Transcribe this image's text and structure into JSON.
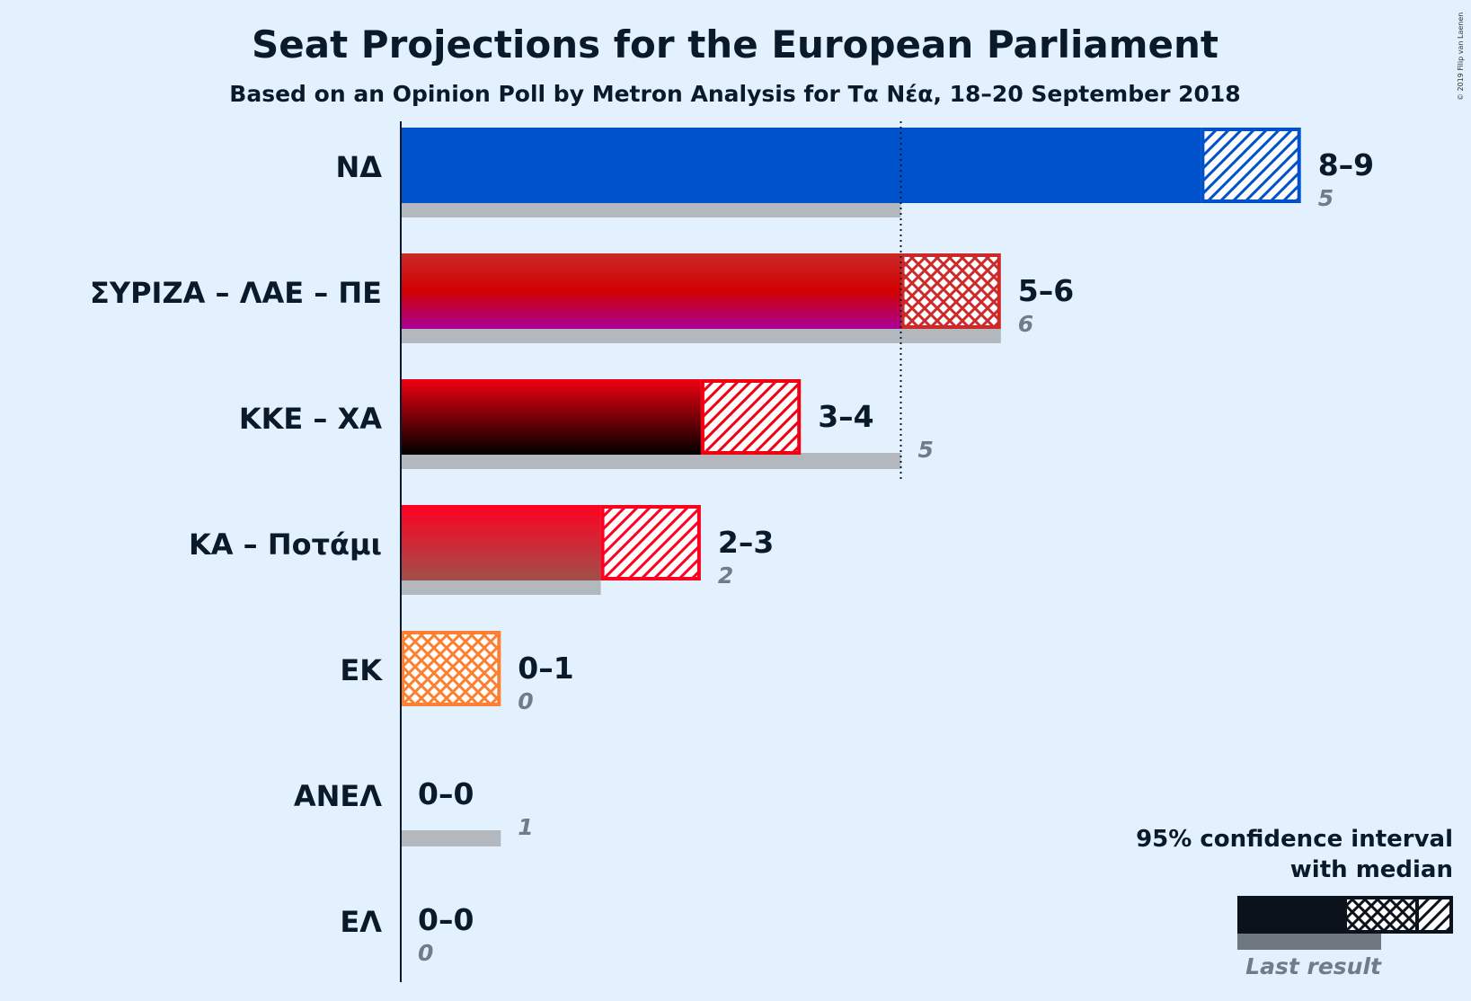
{
  "chart_data": {
    "type": "bar",
    "title": "Seat Projections for the European Parliament",
    "subtitle": "Based on an Opinion Poll by Metron Analysis for Τα Νέα, 18–20 September 2018",
    "copyright": "© 2019 Filip van Laenen",
    "xlim": [
      0,
      9
    ],
    "majority_marker": 5,
    "categories": [
      "ΝΔ",
      "ΣΥΡΙΖΑ – ΛΑΕ – ΠΕ",
      "ΚΚΕ – ΧΑ",
      "ΚΑ – Ποτάμι",
      "ΕΚ",
      "ΑΝΕΛ",
      "ΕΛ"
    ],
    "series": [
      {
        "name": "95% confidence interval",
        "low": [
          8,
          5,
          3,
          2,
          0,
          0,
          0
        ],
        "high": [
          9,
          6,
          4,
          3,
          1,
          0,
          0
        ],
        "range_labels": [
          "8–9",
          "5–6",
          "3–4",
          "2–3",
          "0–1",
          "0–0",
          "0–0"
        ]
      },
      {
        "name": "median",
        "values": [
          8,
          5,
          3,
          2,
          0,
          0,
          0
        ]
      },
      {
        "name": "Last result",
        "values": [
          5,
          6,
          5,
          2,
          0,
          1,
          0
        ],
        "labels": [
          "5",
          "6",
          "5",
          "2",
          "0",
          "1",
          "0"
        ]
      }
    ],
    "colors": [
      [
        "#0052cc"
      ],
      [
        "#cc2a2a",
        "#d00000",
        "#aa0099"
      ],
      [
        "#f00010",
        "#000000"
      ],
      [
        "#ff0020",
        "#a0504a"
      ],
      [
        "#ff7f30"
      ],
      [
        "#2a4a9a"
      ],
      [
        "#1a4fa0"
      ]
    ],
    "patterns": [
      "hatch",
      "cross",
      "hatch",
      "hatch",
      "cross",
      "hatch",
      "hatch"
    ],
    "last_result_color": "#b2b8bd",
    "legend": {
      "line1": "95% confidence interval",
      "line2": "with median",
      "last": "Last result",
      "placement": "bottom-right"
    }
  }
}
